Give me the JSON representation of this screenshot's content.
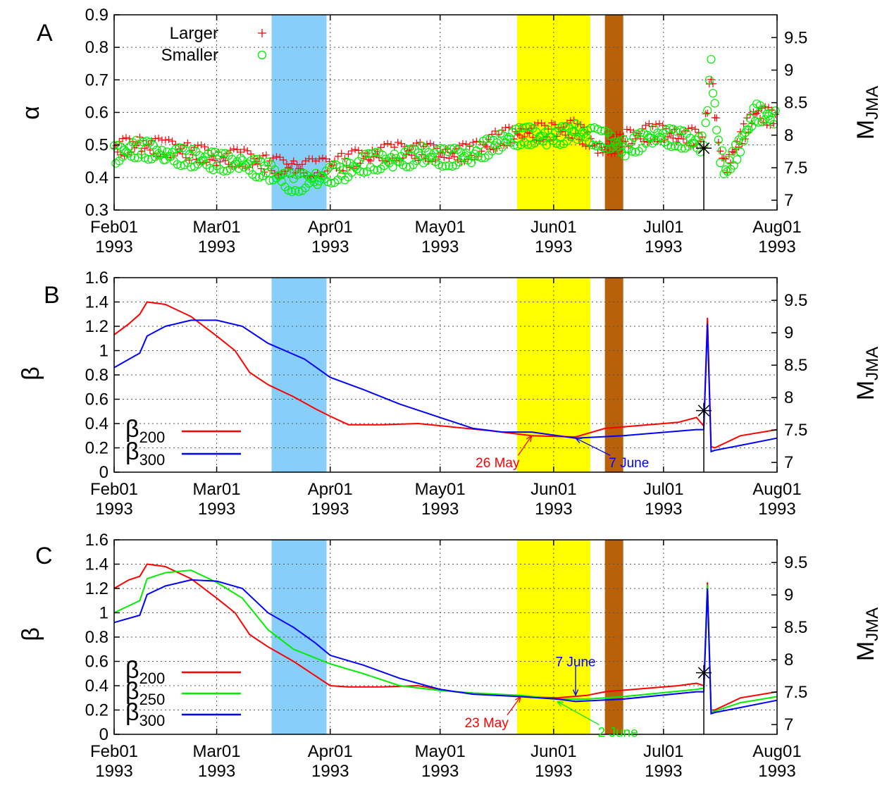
{
  "x_axis": {
    "ticks": [
      {
        "date": "1993-02-01",
        "line1": "Feb01",
        "line2": "1993"
      },
      {
        "date": "1993-03-01",
        "line1": "Mar01",
        "line2": "1993"
      },
      {
        "date": "1993-04-01",
        "line1": "Apr01",
        "line2": "1993"
      },
      {
        "date": "1993-05-01",
        "line1": "May01",
        "line2": "1993"
      },
      {
        "date": "1993-06-01",
        "line1": "Jun01",
        "line2": "1993"
      },
      {
        "date": "1993-07-01",
        "line1": "Jul01",
        "line2": "1993"
      },
      {
        "date": "1993-08-01",
        "line1": "Aug01",
        "line2": "1993"
      }
    ],
    "range": [
      "1993-02-01",
      "1993-08-01"
    ]
  },
  "bands": [
    {
      "from": "1993-03-16",
      "to": "1993-03-31",
      "color": "#87cefa"
    },
    {
      "from": "1993-05-22",
      "to": "1993-06-11",
      "color": "#ffff00"
    },
    {
      "from": "1993-06-15",
      "to": "1993-06-20",
      "color": "#b8600a"
    }
  ],
  "event": {
    "date": "1993-07-12",
    "magnitude": 7.8,
    "marker": "asterisk"
  },
  "colors": {
    "red": "#ff0000",
    "green": "#00ee00",
    "blue": "#0000ff"
  },
  "chart_data": [
    {
      "panel_label": "A",
      "type": "scatter",
      "ylabel": "α",
      "y2label": "M",
      "y2label_sub": "JMA",
      "ylim": [
        0.3,
        0.9
      ],
      "yticks": [
        "0.3",
        "0.4",
        "0.5",
        "0.6",
        "0.7",
        "0.8",
        "0.9"
      ],
      "y2lim": [
        6.85,
        9.85
      ],
      "y2ticks": [
        "7",
        "7.5",
        "8",
        "8.5",
        "9",
        "9.5"
      ],
      "grid": true,
      "legend_position": "top-left",
      "series": [
        {
          "name": "Larger",
          "marker": "plus",
          "color": "#ff0000",
          "points": [
            [
              "1993-02-01",
              0.49
            ],
            [
              "1993-02-08",
              0.5
            ],
            [
              "1993-02-15",
              0.49
            ],
            [
              "1993-02-22",
              0.48
            ],
            [
              "1993-03-01",
              0.46
            ],
            [
              "1993-03-08",
              0.46
            ],
            [
              "1993-03-15",
              0.44
            ],
            [
              "1993-03-22",
              0.43
            ],
            [
              "1993-03-29",
              0.43
            ],
            [
              "1993-04-05",
              0.45
            ],
            [
              "1993-04-12",
              0.47
            ],
            [
              "1993-04-19",
              0.48
            ],
            [
              "1993-04-26",
              0.48
            ],
            [
              "1993-05-03",
              0.47
            ],
            [
              "1993-05-10",
              0.48
            ],
            [
              "1993-05-17",
              0.52
            ],
            [
              "1993-05-24",
              0.54
            ],
            [
              "1993-05-31",
              0.54
            ],
            [
              "1993-06-07",
              0.55
            ],
            [
              "1993-06-14",
              0.48
            ],
            [
              "1993-06-21",
              0.52
            ],
            [
              "1993-06-28",
              0.54
            ],
            [
              "1993-07-05",
              0.53
            ],
            [
              "1993-07-12",
              0.52
            ],
            [
              "1993-07-14",
              0.72
            ],
            [
              "1993-07-16",
              0.5
            ],
            [
              "1993-07-18",
              0.43
            ],
            [
              "1993-07-22",
              0.52
            ],
            [
              "1993-07-26",
              0.6
            ],
            [
              "1993-08-01",
              0.58
            ]
          ]
        },
        {
          "name": "Smaller",
          "marker": "circle",
          "color": "#00ee00",
          "points": [
            [
              "1993-02-01",
              0.47
            ],
            [
              "1993-02-08",
              0.49
            ],
            [
              "1993-02-15",
              0.47
            ],
            [
              "1993-02-22",
              0.46
            ],
            [
              "1993-03-01",
              0.45
            ],
            [
              "1993-03-08",
              0.44
            ],
            [
              "1993-03-15",
              0.42
            ],
            [
              "1993-03-22",
              0.38
            ],
            [
              "1993-03-29",
              0.4
            ],
            [
              "1993-04-05",
              0.42
            ],
            [
              "1993-04-12",
              0.45
            ],
            [
              "1993-04-19",
              0.45
            ],
            [
              "1993-04-26",
              0.47
            ],
            [
              "1993-05-03",
              0.46
            ],
            [
              "1993-05-10",
              0.47
            ],
            [
              "1993-05-17",
              0.51
            ],
            [
              "1993-05-24",
              0.53
            ],
            [
              "1993-05-31",
              0.52
            ],
            [
              "1993-06-07",
              0.54
            ],
            [
              "1993-06-14",
              0.52
            ],
            [
              "1993-06-21",
              0.49
            ],
            [
              "1993-06-28",
              0.53
            ],
            [
              "1993-07-05",
              0.52
            ],
            [
              "1993-07-12",
              0.5
            ],
            [
              "1993-07-14",
              0.74
            ],
            [
              "1993-07-16",
              0.49
            ],
            [
              "1993-07-18",
              0.42
            ],
            [
              "1993-07-22",
              0.5
            ],
            [
              "1993-07-26",
              0.6
            ],
            [
              "1993-08-01",
              0.58
            ]
          ]
        }
      ],
      "annotations": []
    },
    {
      "panel_label": "B",
      "type": "line",
      "ylabel": "β",
      "y2label": "M",
      "y2label_sub": "JMA",
      "ylim": [
        0,
        1.6
      ],
      "yticks": [
        "0",
        "0.2",
        "0.4",
        "0.6",
        "0.8",
        "1",
        "1.2",
        "1.4",
        "1.6"
      ],
      "y2lim": [
        6.85,
        9.85
      ],
      "y2ticks": [
        "7",
        "7.5",
        "8",
        "8.5",
        "9",
        "9.5"
      ],
      "grid": true,
      "legend_position": "bottom-left",
      "series": [
        {
          "name": "β",
          "name_sub": "200",
          "color": "#ff0000",
          "points": [
            [
              "1993-02-01",
              1.13
            ],
            [
              "1993-02-05",
              1.22
            ],
            [
              "1993-02-08",
              1.3
            ],
            [
              "1993-02-10",
              1.4
            ],
            [
              "1993-02-15",
              1.38
            ],
            [
              "1993-02-22",
              1.28
            ],
            [
              "1993-03-01",
              1.12
            ],
            [
              "1993-03-06",
              1.0
            ],
            [
              "1993-03-10",
              0.82
            ],
            [
              "1993-03-15",
              0.72
            ],
            [
              "1993-03-22",
              0.62
            ],
            [
              "1993-03-28",
              0.52
            ],
            [
              "1993-04-01",
              0.46
            ],
            [
              "1993-04-06",
              0.39
            ],
            [
              "1993-04-15",
              0.39
            ],
            [
              "1993-04-25",
              0.4
            ],
            [
              "1993-05-05",
              0.37
            ],
            [
              "1993-05-15",
              0.34
            ],
            [
              "1993-05-26",
              0.3
            ],
            [
              "1993-06-07",
              0.29
            ],
            [
              "1993-06-15",
              0.36
            ],
            [
              "1993-07-05",
              0.41
            ],
            [
              "1993-07-10",
              0.45
            ],
            [
              "1993-07-12",
              0.38
            ],
            [
              "1993-07-13",
              1.27
            ],
            [
              "1993-07-14",
              0.21
            ],
            [
              "1993-07-15",
              0.2
            ],
            [
              "1993-07-22",
              0.3
            ],
            [
              "1993-08-01",
              0.35
            ]
          ]
        },
        {
          "name": "β",
          "name_sub": "300",
          "color": "#0000ff",
          "points": [
            [
              "1993-02-01",
              0.86
            ],
            [
              "1993-02-08",
              0.98
            ],
            [
              "1993-02-10",
              1.12
            ],
            [
              "1993-02-15",
              1.2
            ],
            [
              "1993-02-22",
              1.25
            ],
            [
              "1993-03-01",
              1.25
            ],
            [
              "1993-03-08",
              1.2
            ],
            [
              "1993-03-15",
              1.06
            ],
            [
              "1993-03-25",
              0.93
            ],
            [
              "1993-04-01",
              0.78
            ],
            [
              "1993-04-10",
              0.68
            ],
            [
              "1993-04-20",
              0.56
            ],
            [
              "1993-05-01",
              0.45
            ],
            [
              "1993-05-10",
              0.36
            ],
            [
              "1993-05-18",
              0.33
            ],
            [
              "1993-05-26",
              0.33
            ],
            [
              "1993-06-07",
              0.28
            ],
            [
              "1993-06-20",
              0.3
            ],
            [
              "1993-07-10",
              0.35
            ],
            [
              "1993-07-12",
              0.35
            ],
            [
              "1993-07-13",
              1.22
            ],
            [
              "1993-07-14",
              0.17
            ],
            [
              "1993-07-15",
              0.18
            ],
            [
              "1993-07-22",
              0.22
            ],
            [
              "1993-08-01",
              0.28
            ]
          ]
        }
      ],
      "annotations": [
        {
          "text": "26 May",
          "color": "#ff0000",
          "at": [
            "1993-05-26",
            0.3
          ],
          "label_at": [
            "1993-05-15",
            0.08
          ]
        },
        {
          "text": "7 June",
          "color": "#0000ff",
          "at": [
            "1993-06-07",
            0.28
          ],
          "label_at": [
            "1993-06-18",
            0.08
          ]
        }
      ]
    },
    {
      "panel_label": "C",
      "type": "line",
      "ylabel": "β",
      "y2label": "M",
      "y2label_sub": "JMA",
      "ylim": [
        0,
        1.6
      ],
      "yticks": [
        "0",
        "0.2",
        "0.4",
        "0.6",
        "0.8",
        "1",
        "1.2",
        "1.4",
        "1.6"
      ],
      "y2lim": [
        6.85,
        9.85
      ],
      "y2ticks": [
        "7",
        "7.5",
        "8",
        "8.5",
        "9",
        "9.5"
      ],
      "grid": true,
      "legend_position": "bottom-left",
      "series": [
        {
          "name": "β",
          "name_sub": "200",
          "color": "#ff0000",
          "points": [
            [
              "1993-02-01",
              1.2
            ],
            [
              "1993-02-05",
              1.27
            ],
            [
              "1993-02-08",
              1.3
            ],
            [
              "1993-02-10",
              1.4
            ],
            [
              "1993-02-15",
              1.38
            ],
            [
              "1993-02-22",
              1.28
            ],
            [
              "1993-03-01",
              1.12
            ],
            [
              "1993-03-06",
              1.0
            ],
            [
              "1993-03-10",
              0.82
            ],
            [
              "1993-03-15",
              0.72
            ],
            [
              "1993-03-22",
              0.6
            ],
            [
              "1993-03-28",
              0.48
            ],
            [
              "1993-04-01",
              0.4
            ],
            [
              "1993-04-06",
              0.39
            ],
            [
              "1993-04-15",
              0.39
            ],
            [
              "1993-04-25",
              0.4
            ],
            [
              "1993-05-05",
              0.35
            ],
            [
              "1993-05-15",
              0.33
            ],
            [
              "1993-05-23",
              0.31
            ],
            [
              "1993-06-02",
              0.3
            ],
            [
              "1993-06-10",
              0.32
            ],
            [
              "1993-06-15",
              0.35
            ],
            [
              "1993-07-05",
              0.4
            ],
            [
              "1993-07-10",
              0.42
            ],
            [
              "1993-07-12",
              0.4
            ],
            [
              "1993-07-13",
              1.25
            ],
            [
              "1993-07-14",
              0.2
            ],
            [
              "1993-07-15",
              0.2
            ],
            [
              "1993-07-22",
              0.3
            ],
            [
              "1993-08-01",
              0.35
            ]
          ]
        },
        {
          "name": "β",
          "name_sub": "250",
          "color": "#00ee00",
          "points": [
            [
              "1993-02-01",
              1.0
            ],
            [
              "1993-02-08",
              1.1
            ],
            [
              "1993-02-10",
              1.28
            ],
            [
              "1993-02-15",
              1.33
            ],
            [
              "1993-02-22",
              1.35
            ],
            [
              "1993-03-01",
              1.25
            ],
            [
              "1993-03-08",
              1.12
            ],
            [
              "1993-03-15",
              0.86
            ],
            [
              "1993-03-22",
              0.7
            ],
            [
              "1993-04-01",
              0.58
            ],
            [
              "1993-04-10",
              0.5
            ],
            [
              "1993-04-20",
              0.4
            ],
            [
              "1993-05-01",
              0.36
            ],
            [
              "1993-05-10",
              0.34
            ],
            [
              "1993-05-23",
              0.32
            ],
            [
              "1993-06-02",
              0.29
            ],
            [
              "1993-06-10",
              0.29
            ],
            [
              "1993-06-20",
              0.31
            ],
            [
              "1993-07-10",
              0.37
            ],
            [
              "1993-07-12",
              0.38
            ],
            [
              "1993-07-13",
              1.23
            ],
            [
              "1993-07-14",
              0.18
            ],
            [
              "1993-07-15",
              0.19
            ],
            [
              "1993-07-22",
              0.26
            ],
            [
              "1993-08-01",
              0.31
            ]
          ]
        },
        {
          "name": "β",
          "name_sub": "300",
          "color": "#0000ff",
          "points": [
            [
              "1993-02-01",
              0.92
            ],
            [
              "1993-02-08",
              0.98
            ],
            [
              "1993-02-10",
              1.15
            ],
            [
              "1993-02-15",
              1.22
            ],
            [
              "1993-02-22",
              1.27
            ],
            [
              "1993-03-01",
              1.26
            ],
            [
              "1993-03-08",
              1.2
            ],
            [
              "1993-03-15",
              1.0
            ],
            [
              "1993-03-22",
              0.88
            ],
            [
              "1993-03-28",
              0.75
            ],
            [
              "1993-04-01",
              0.65
            ],
            [
              "1993-04-10",
              0.57
            ],
            [
              "1993-04-20",
              0.46
            ],
            [
              "1993-05-01",
              0.37
            ],
            [
              "1993-05-10",
              0.33
            ],
            [
              "1993-05-23",
              0.31
            ],
            [
              "1993-06-02",
              0.29
            ],
            [
              "1993-06-07",
              0.27
            ],
            [
              "1993-06-20",
              0.29
            ],
            [
              "1993-07-10",
              0.35
            ],
            [
              "1993-07-12",
              0.35
            ],
            [
              "1993-07-13",
              1.2
            ],
            [
              "1993-07-14",
              0.17
            ],
            [
              "1993-07-15",
              0.18
            ],
            [
              "1993-07-22",
              0.22
            ],
            [
              "1993-08-01",
              0.28
            ]
          ]
        }
      ],
      "annotations": [
        {
          "text": "23 May",
          "color": "#ff0000",
          "at": [
            "1993-05-23",
            0.31
          ],
          "label_at": [
            "1993-05-12",
            0.1
          ]
        },
        {
          "text": "7 June",
          "color": "#0000ff",
          "at": [
            "1993-06-07",
            0.32
          ],
          "label_at": [
            "1993-06-07",
            0.6
          ]
        },
        {
          "text": "2 June",
          "color": "#00ee00",
          "at": [
            "1993-06-02",
            0.27
          ],
          "label_at": [
            "1993-06-15",
            0.02
          ]
        }
      ]
    }
  ]
}
